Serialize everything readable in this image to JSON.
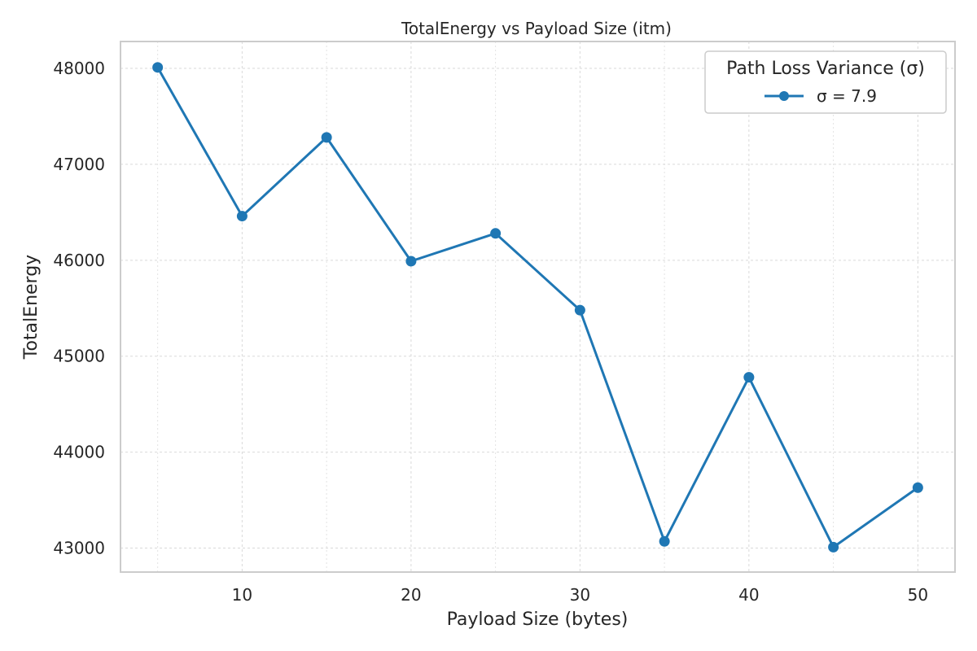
{
  "chart_data": {
    "type": "line",
    "title": "TotalEnergy vs Payload Size (itm)",
    "xlabel": "Payload Size (bytes)",
    "ylabel": "TotalEnergy",
    "xlim": [
      2.8,
      52.2
    ],
    "ylim": [
      42750,
      48280
    ],
    "xticks": [
      10,
      20,
      30,
      40,
      50
    ],
    "yticks": [
      43000,
      44000,
      45000,
      46000,
      47000,
      48000
    ],
    "grid": true,
    "legend": {
      "title": "Path Loss Variance (σ)",
      "placement": "top-right"
    },
    "series": [
      {
        "name": "σ = 7.9",
        "color": "#1f77b4",
        "marker": "circle",
        "x": [
          5,
          10,
          15,
          20,
          25,
          30,
          35,
          40,
          45,
          50
        ],
        "y": [
          48010,
          46460,
          47280,
          45990,
          46280,
          45480,
          43070,
          44780,
          43010,
          43630
        ]
      }
    ]
  }
}
